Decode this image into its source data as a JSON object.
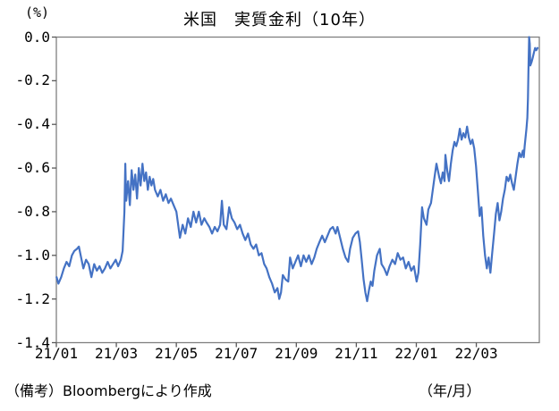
{
  "header": {
    "title": "米国　実質金利（10年）",
    "y_unit": "(%)"
  },
  "footer": {
    "note": "（備考）Bloombergにより作成",
    "x_unit": "（年/月）"
  },
  "colors": {
    "line": "#4472C4",
    "frame": "#7f7f7f",
    "tick": "#595959",
    "text": "#000000"
  },
  "chart_data": {
    "type": "line",
    "title": "米国　実質金利（10年）",
    "ylabel": "(%)",
    "xlabel": "（年/月）",
    "legend": null,
    "grid": false,
    "xlim": [
      0,
      16.1
    ],
    "ylim": [
      -1.4,
      0.0
    ],
    "x_unit_note": "x = months since 2021-01 (21/01)",
    "x_ticks": [
      0,
      2,
      4,
      6,
      8,
      10,
      12,
      14
    ],
    "x_tick_labels": [
      "21/01",
      "21/03",
      "21/05",
      "21/07",
      "21/09",
      "21/11",
      "22/01",
      "22/03"
    ],
    "y_ticks": [
      0.0,
      -0.2,
      -0.4,
      -0.6,
      -0.8,
      -1.0,
      -1.2,
      -1.4
    ],
    "y_tick_labels": [
      "0.0",
      "-0.2",
      "-0.4",
      "-0.6",
      "-0.8",
      "-1.0",
      "-1.2",
      "-1.4"
    ],
    "series": [
      {
        "name": "米国 実質金利（10年）",
        "points": [
          [
            0.01,
            -1.1
          ],
          [
            0.07,
            -1.13
          ],
          [
            0.16,
            -1.1
          ],
          [
            0.25,
            -1.06
          ],
          [
            0.34,
            -1.03
          ],
          [
            0.43,
            -1.05
          ],
          [
            0.52,
            -1.0
          ],
          [
            0.6,
            -0.98
          ],
          [
            0.69,
            -0.97
          ],
          [
            0.75,
            -0.96
          ],
          [
            0.84,
            -1.02
          ],
          [
            0.9,
            -1.06
          ],
          [
            0.99,
            -1.02
          ],
          [
            1.08,
            -1.04
          ],
          [
            1.17,
            -1.1
          ],
          [
            1.26,
            -1.04
          ],
          [
            1.35,
            -1.07
          ],
          [
            1.44,
            -1.05
          ],
          [
            1.53,
            -1.08
          ],
          [
            1.62,
            -1.06
          ],
          [
            1.71,
            -1.03
          ],
          [
            1.8,
            -1.06
          ],
          [
            1.89,
            -1.04
          ],
          [
            1.98,
            -1.02
          ],
          [
            2.06,
            -1.05
          ],
          [
            2.15,
            -1.02
          ],
          [
            2.21,
            -0.98
          ],
          [
            2.27,
            -0.8
          ],
          [
            2.3,
            -0.58
          ],
          [
            2.33,
            -0.75
          ],
          [
            2.39,
            -0.66
          ],
          [
            2.45,
            -0.77
          ],
          [
            2.51,
            -0.61
          ],
          [
            2.57,
            -0.7
          ],
          [
            2.63,
            -0.63
          ],
          [
            2.69,
            -0.74
          ],
          [
            2.75,
            -0.6
          ],
          [
            2.81,
            -0.68
          ],
          [
            2.87,
            -0.58
          ],
          [
            2.93,
            -0.66
          ],
          [
            2.99,
            -0.62
          ],
          [
            3.05,
            -0.7
          ],
          [
            3.11,
            -0.64
          ],
          [
            3.17,
            -0.68
          ],
          [
            3.23,
            -0.65
          ],
          [
            3.29,
            -0.7
          ],
          [
            3.38,
            -0.73
          ],
          [
            3.47,
            -0.7
          ],
          [
            3.56,
            -0.75
          ],
          [
            3.65,
            -0.72
          ],
          [
            3.74,
            -0.76
          ],
          [
            3.82,
            -0.74
          ],
          [
            3.91,
            -0.77
          ],
          [
            4.0,
            -0.8
          ],
          [
            4.06,
            -0.86
          ],
          [
            4.12,
            -0.92
          ],
          [
            4.21,
            -0.86
          ],
          [
            4.3,
            -0.9
          ],
          [
            4.39,
            -0.83
          ],
          [
            4.48,
            -0.87
          ],
          [
            4.57,
            -0.8
          ],
          [
            4.66,
            -0.85
          ],
          [
            4.75,
            -0.8
          ],
          [
            4.84,
            -0.86
          ],
          [
            4.93,
            -0.83
          ],
          [
            5.01,
            -0.85
          ],
          [
            5.1,
            -0.87
          ],
          [
            5.19,
            -0.9
          ],
          [
            5.28,
            -0.87
          ],
          [
            5.37,
            -0.89
          ],
          [
            5.46,
            -0.86
          ],
          [
            5.52,
            -0.75
          ],
          [
            5.58,
            -0.86
          ],
          [
            5.67,
            -0.88
          ],
          [
            5.76,
            -0.78
          ],
          [
            5.85,
            -0.83
          ],
          [
            5.94,
            -0.85
          ],
          [
            6.03,
            -0.88
          ],
          [
            6.12,
            -0.86
          ],
          [
            6.21,
            -0.9
          ],
          [
            6.3,
            -0.93
          ],
          [
            6.39,
            -0.9
          ],
          [
            6.48,
            -0.95
          ],
          [
            6.57,
            -0.97
          ],
          [
            6.66,
            -0.95
          ],
          [
            6.75,
            -1.0
          ],
          [
            6.84,
            -0.99
          ],
          [
            6.93,
            -1.04
          ],
          [
            7.01,
            -1.06
          ],
          [
            7.1,
            -1.1
          ],
          [
            7.19,
            -1.13
          ],
          [
            7.28,
            -1.17
          ],
          [
            7.37,
            -1.15
          ],
          [
            7.43,
            -1.2
          ],
          [
            7.49,
            -1.17
          ],
          [
            7.55,
            -1.09
          ],
          [
            7.64,
            -1.11
          ],
          [
            7.73,
            -1.12
          ],
          [
            7.79,
            -1.01
          ],
          [
            7.88,
            -1.06
          ],
          [
            7.97,
            -1.03
          ],
          [
            8.06,
            -1.0
          ],
          [
            8.15,
            -1.05
          ],
          [
            8.24,
            -1.0
          ],
          [
            8.33,
            -1.03
          ],
          [
            8.42,
            -1.0
          ],
          [
            8.51,
            -1.04
          ],
          [
            8.6,
            -1.01
          ],
          [
            8.68,
            -0.97
          ],
          [
            8.77,
            -0.94
          ],
          [
            8.86,
            -0.91
          ],
          [
            8.95,
            -0.94
          ],
          [
            9.04,
            -0.91
          ],
          [
            9.13,
            -0.88
          ],
          [
            9.22,
            -0.87
          ],
          [
            9.31,
            -0.9
          ],
          [
            9.37,
            -0.87
          ],
          [
            9.46,
            -0.92
          ],
          [
            9.55,
            -0.97
          ],
          [
            9.64,
            -1.01
          ],
          [
            9.73,
            -1.03
          ],
          [
            9.79,
            -0.97
          ],
          [
            9.88,
            -0.92
          ],
          [
            9.97,
            -0.9
          ],
          [
            10.06,
            -0.89
          ],
          [
            10.12,
            -0.94
          ],
          [
            10.18,
            -1.02
          ],
          [
            10.24,
            -1.11
          ],
          [
            10.3,
            -1.17
          ],
          [
            10.36,
            -1.21
          ],
          [
            10.42,
            -1.16
          ],
          [
            10.48,
            -1.12
          ],
          [
            10.54,
            -1.14
          ],
          [
            10.6,
            -1.07
          ],
          [
            10.69,
            -1.0
          ],
          [
            10.78,
            -0.97
          ],
          [
            10.84,
            -1.04
          ],
          [
            10.93,
            -1.06
          ],
          [
            11.02,
            -1.09
          ],
          [
            11.11,
            -1.05
          ],
          [
            11.2,
            -1.02
          ],
          [
            11.29,
            -1.04
          ],
          [
            11.38,
            -0.99
          ],
          [
            11.47,
            -1.02
          ],
          [
            11.56,
            -1.01
          ],
          [
            11.65,
            -1.06
          ],
          [
            11.74,
            -1.03
          ],
          [
            11.83,
            -1.07
          ],
          [
            11.92,
            -1.05
          ],
          [
            12.01,
            -1.12
          ],
          [
            12.07,
            -1.08
          ],
          [
            12.13,
            -0.95
          ],
          [
            12.19,
            -0.78
          ],
          [
            12.25,
            -0.83
          ],
          [
            12.34,
            -0.86
          ],
          [
            12.4,
            -0.79
          ],
          [
            12.49,
            -0.76
          ],
          [
            12.55,
            -0.7
          ],
          [
            12.61,
            -0.64
          ],
          [
            12.67,
            -0.58
          ],
          [
            12.76,
            -0.64
          ],
          [
            12.82,
            -0.67
          ],
          [
            12.88,
            -0.62
          ],
          [
            12.94,
            -0.66
          ],
          [
            12.97,
            -0.54
          ],
          [
            13.03,
            -0.61
          ],
          [
            13.09,
            -0.66
          ],
          [
            13.15,
            -0.58
          ],
          [
            13.21,
            -0.52
          ],
          [
            13.27,
            -0.48
          ],
          [
            13.33,
            -0.5
          ],
          [
            13.39,
            -0.47
          ],
          [
            13.45,
            -0.42
          ],
          [
            13.51,
            -0.47
          ],
          [
            13.57,
            -0.44
          ],
          [
            13.63,
            -0.46
          ],
          [
            13.69,
            -0.41
          ],
          [
            13.75,
            -0.46
          ],
          [
            13.81,
            -0.49
          ],
          [
            13.87,
            -0.47
          ],
          [
            13.93,
            -0.51
          ],
          [
            13.99,
            -0.59
          ],
          [
            14.05,
            -0.7
          ],
          [
            14.11,
            -0.82
          ],
          [
            14.17,
            -0.78
          ],
          [
            14.23,
            -0.91
          ],
          [
            14.29,
            -1.0
          ],
          [
            14.35,
            -1.06
          ],
          [
            14.41,
            -1.01
          ],
          [
            14.47,
            -1.08
          ],
          [
            14.53,
            -0.99
          ],
          [
            14.59,
            -0.9
          ],
          [
            14.65,
            -0.81
          ],
          [
            14.71,
            -0.76
          ],
          [
            14.77,
            -0.84
          ],
          [
            14.83,
            -0.8
          ],
          [
            14.89,
            -0.74
          ],
          [
            14.95,
            -0.7
          ],
          [
            15.01,
            -0.64
          ],
          [
            15.07,
            -0.66
          ],
          [
            15.13,
            -0.63
          ],
          [
            15.19,
            -0.67
          ],
          [
            15.25,
            -0.7
          ],
          [
            15.31,
            -0.64
          ],
          [
            15.37,
            -0.58
          ],
          [
            15.43,
            -0.53
          ],
          [
            15.49,
            -0.55
          ],
          [
            15.55,
            -0.52
          ],
          [
            15.58,
            -0.55
          ],
          [
            15.61,
            -0.5
          ],
          [
            15.64,
            -0.46
          ],
          [
            15.67,
            -0.42
          ],
          [
            15.7,
            -0.37
          ],
          [
            15.72,
            -0.28
          ],
          [
            15.74,
            -0.14
          ],
          [
            15.76,
            0.0
          ],
          [
            15.78,
            -0.03
          ],
          [
            15.8,
            -0.13
          ],
          [
            15.84,
            -0.115
          ],
          [
            15.88,
            -0.095
          ],
          [
            15.92,
            -0.07
          ],
          [
            15.96,
            -0.05
          ],
          [
            16.0,
            -0.06
          ],
          [
            16.04,
            -0.05
          ]
        ]
      }
    ]
  }
}
